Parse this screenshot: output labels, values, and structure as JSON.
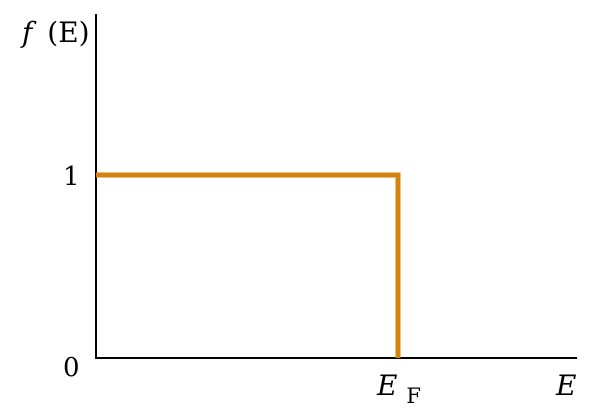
{
  "chart_data": {
    "type": "line",
    "ylabel": {
      "func": "f",
      "arg": "(E)"
    },
    "xlabel": "E",
    "x_tick": {
      "symbol": "E",
      "subscript": "F"
    },
    "y_ticks": [
      "1",
      "0"
    ],
    "ylim": [
      0,
      1.8
    ],
    "grid": false,
    "legend": "none",
    "colors": {
      "curve": "#d4820e",
      "axes": "#000000"
    },
    "series": [
      {
        "points": [
          {
            "x": "0",
            "y": 1
          },
          {
            "x": "E_F",
            "y": 1
          },
          {
            "x": "E_F",
            "y": 0
          }
        ]
      }
    ]
  }
}
